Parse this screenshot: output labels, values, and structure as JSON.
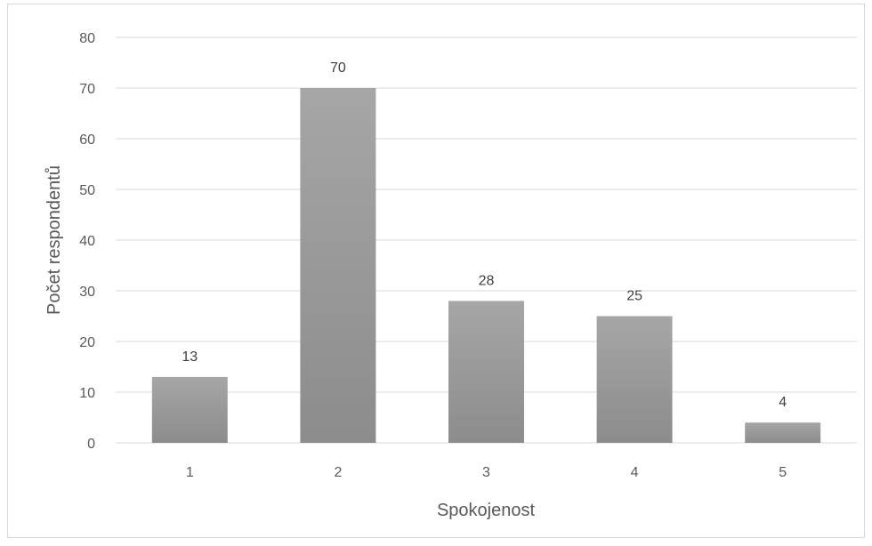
{
  "chart_data": {
    "type": "bar",
    "categories": [
      "1",
      "2",
      "3",
      "4",
      "5"
    ],
    "values": [
      13,
      70,
      28,
      25,
      4
    ],
    "data_labels": [
      "13",
      "70",
      "28",
      "25",
      "4"
    ],
    "title": "",
    "xlabel": "Spokojenost",
    "ylabel": "Počet respondentů",
    "ylim": [
      0,
      80
    ],
    "yticks": [
      "0",
      "10",
      "20",
      "30",
      "40",
      "50",
      "60",
      "70",
      "80"
    ],
    "grid": true,
    "legend": "none",
    "bar_color_top": "#a6a6a6",
    "bar_color_bottom": "#8c8c8c",
    "gridline_color": "#d9d9d9"
  }
}
